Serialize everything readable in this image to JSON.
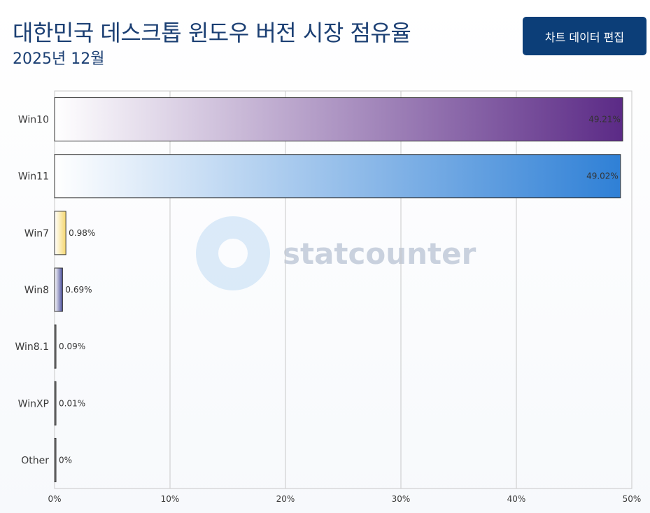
{
  "header": {
    "title": "대한민국 데스크톱 윈도우 버전 시장 점유율",
    "subtitle": "2025년 12월",
    "edit_button": "차트 데이터 편집"
  },
  "watermark": {
    "text": "statcounter"
  },
  "chart_data": {
    "type": "bar",
    "orientation": "horizontal",
    "categories": [
      "Win10",
      "Win11",
      "Win7",
      "Win8",
      "Win8.1",
      "WinXP",
      "Other"
    ],
    "values": [
      49.21,
      49.02,
      0.98,
      0.69,
      0.09,
      0.01,
      0
    ],
    "data_labels": [
      "49.21%",
      "49.02%",
      "0.98%",
      "0.69%",
      "0.09%",
      "0.01%",
      "0%"
    ],
    "colors": [
      "#5b2a86",
      "#2f80d6",
      "#f5d76e",
      "#4a4f9a",
      "#333333",
      "#333333",
      "#333333"
    ],
    "xlim": [
      0,
      50
    ],
    "x_ticks": [
      "0%",
      "10%",
      "20%",
      "30%",
      "40%",
      "50%"
    ],
    "grid": true,
    "title": "대한민국 데스크톱 윈도우 버전 시장 점유율",
    "subtitle": "2025년 12월"
  }
}
